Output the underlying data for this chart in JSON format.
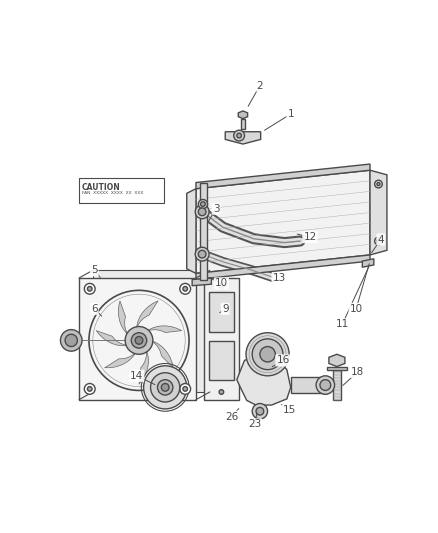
{
  "bg_color": "#ffffff",
  "line_color": "#4a4a4a",
  "caution_text": "CAUTION",
  "caution_sub": "FAN  XXXXX  XXXX  XX  XXX",
  "fig_w": 4.38,
  "fig_h": 5.33,
  "dpi": 100
}
